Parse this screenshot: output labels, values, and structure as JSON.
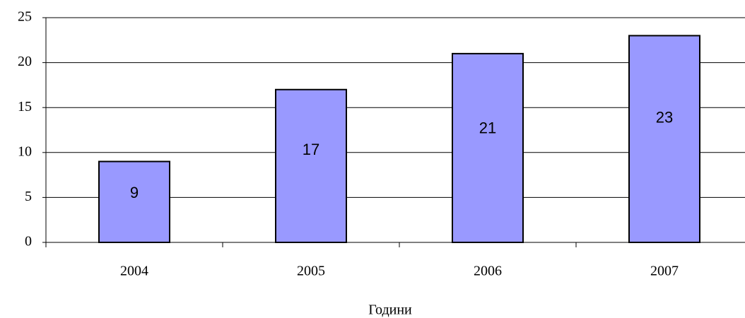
{
  "chart_data": {
    "type": "bar",
    "x_label": "Години",
    "categories": [
      "2004",
      "2005",
      "2006",
      "2007"
    ],
    "values": [
      9,
      17,
      21,
      23
    ],
    "color": "#9999ff",
    "ylim": [
      0,
      25
    ],
    "yticks": [
      0,
      5,
      10,
      15,
      20,
      25
    ],
    "grid": true
  }
}
